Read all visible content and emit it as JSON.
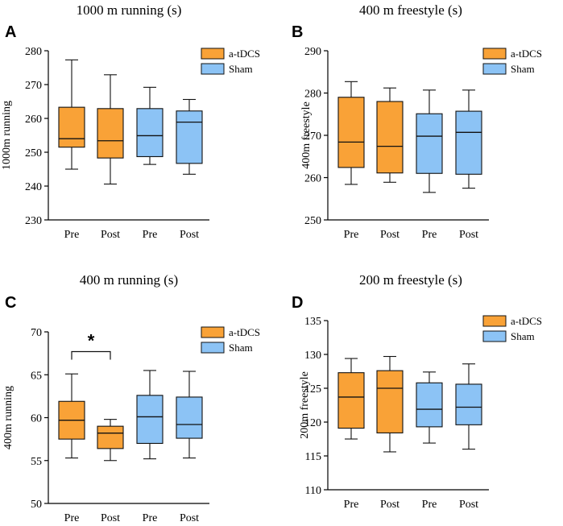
{
  "chart_data": [
    {
      "panel": "A",
      "type": "box",
      "title": "1000 m running (s)",
      "ylabel": "1000m running",
      "ylim": [
        230,
        280
      ],
      "yticks": [
        230,
        240,
        250,
        260,
        270,
        280
      ],
      "categories": [
        "Pre",
        "Post",
        "Pre",
        "Post"
      ],
      "groups": [
        "a-tDCS",
        "a-tDCS",
        "Sham",
        "Sham"
      ],
      "legend": [
        "a-tDCS",
        "Sham"
      ],
      "boxes": [
        {
          "min": 245,
          "q1": 251.5,
          "median": 254,
          "q3": 263.3,
          "max": 277.3
        },
        {
          "min": 240.6,
          "q1": 248.3,
          "median": 253.4,
          "q3": 262.9,
          "max": 272.9
        },
        {
          "min": 246.4,
          "q1": 248.7,
          "median": 254.9,
          "q3": 262.9,
          "max": 269.2
        },
        {
          "min": 243.5,
          "q1": 246.7,
          "median": 258.9,
          "q3": 262.2,
          "max": 265.6
        }
      ],
      "significance": null
    },
    {
      "panel": "B",
      "type": "box",
      "title": "400 m freestyle (s)",
      "ylabel": "400m freestyle",
      "ylim": [
        250,
        290
      ],
      "yticks": [
        250,
        260,
        270,
        280,
        290
      ],
      "categories": [
        "Pre",
        "Post",
        "Pre",
        "Post"
      ],
      "groups": [
        "a-tDCS",
        "a-tDCS",
        "Sham",
        "Sham"
      ],
      "legend": [
        "a-tDCS",
        "Sham"
      ],
      "boxes": [
        {
          "min": 258.4,
          "q1": 262.4,
          "median": 268.4,
          "q3": 279.0,
          "max": 282.7
        },
        {
          "min": 258.9,
          "q1": 261.1,
          "median": 267.4,
          "q3": 278.0,
          "max": 281.2
        },
        {
          "min": 256.5,
          "q1": 261.0,
          "median": 269.8,
          "q3": 275.1,
          "max": 280.7
        },
        {
          "min": 257.5,
          "q1": 260.8,
          "median": 270.7,
          "q3": 275.7,
          "max": 280.7
        }
      ],
      "significance": null
    },
    {
      "panel": "C",
      "type": "box",
      "title": "400 m running (s)",
      "ylabel": "400m running",
      "ylim": [
        50,
        70
      ],
      "yticks": [
        50,
        55,
        60,
        65,
        70
      ],
      "categories": [
        "Pre",
        "Post",
        "Pre",
        "Post"
      ],
      "groups": [
        "a-tDCS",
        "a-tDCS",
        "Sham",
        "Sham"
      ],
      "legend": [
        "a-tDCS",
        "Sham"
      ],
      "boxes": [
        {
          "min": 55.3,
          "q1": 57.5,
          "median": 59.7,
          "q3": 61.9,
          "max": 65.1
        },
        {
          "min": 55.0,
          "q1": 56.4,
          "median": 58.2,
          "q3": 59.0,
          "max": 59.8
        },
        {
          "min": 55.2,
          "q1": 57.0,
          "median": 60.1,
          "q3": 62.6,
          "max": 65.5
        },
        {
          "min": 55.3,
          "q1": 57.6,
          "median": 59.2,
          "q3": 62.4,
          "max": 65.4
        }
      ],
      "significance": {
        "from": 0,
        "to": 1,
        "level": 67.7,
        "label": "*"
      }
    },
    {
      "panel": "D",
      "type": "box",
      "title": "200 m freestyle (s)",
      "ylabel": "200m freestyle",
      "ylim": [
        110,
        135
      ],
      "yticks": [
        110,
        115,
        120,
        125,
        130,
        135
      ],
      "categories": [
        "Pre",
        "Post",
        "Pre",
        "Post"
      ],
      "groups": [
        "a-tDCS",
        "a-tDCS",
        "Sham",
        "Sham"
      ],
      "legend": [
        "a-tDCS",
        "Sham"
      ],
      "boxes": [
        {
          "min": 117.5,
          "q1": 119.1,
          "median": 123.7,
          "q3": 127.3,
          "max": 129.4
        },
        {
          "min": 115.6,
          "q1": 118.4,
          "median": 125.0,
          "q3": 127.6,
          "max": 129.7
        },
        {
          "min": 116.9,
          "q1": 119.3,
          "median": 121.9,
          "q3": 125.8,
          "max": 127.4
        },
        {
          "min": 116.0,
          "q1": 119.6,
          "median": 122.2,
          "q3": 125.6,
          "max": 128.6
        }
      ],
      "significance": null
    }
  ],
  "colors": {
    "a-tDCS": "#f9a237",
    "Sham": "#8cc3f5",
    "stroke": "#111111"
  }
}
